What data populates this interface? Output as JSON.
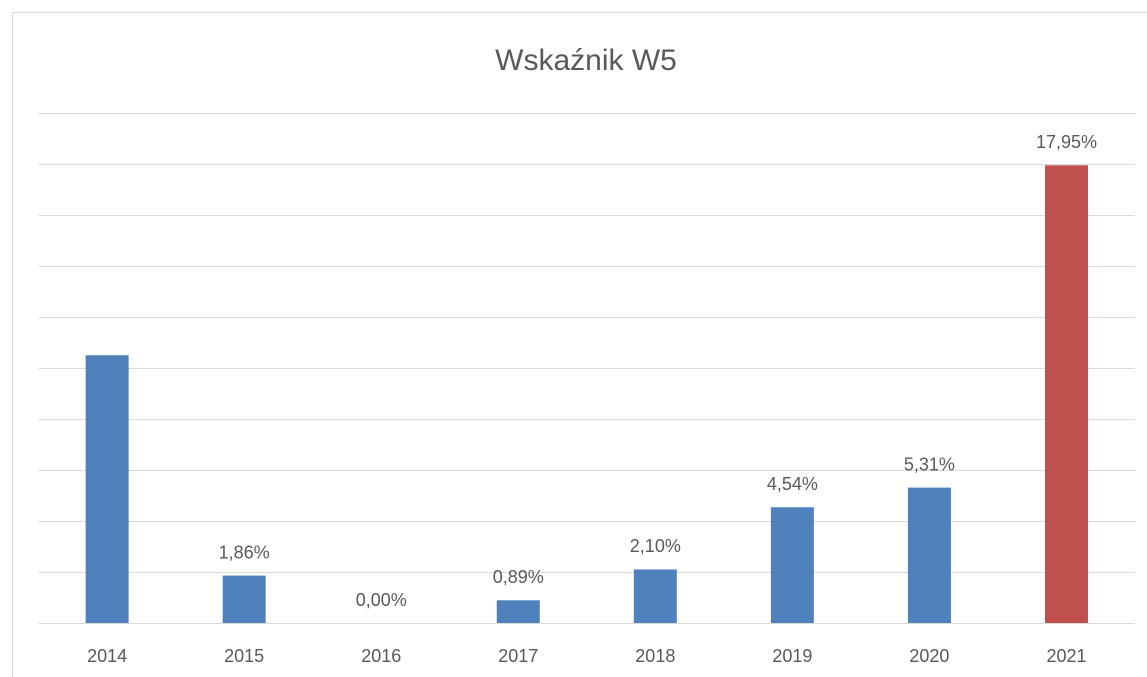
{
  "chart_data": {
    "type": "bar",
    "title": "Wskaźnik W5",
    "categories": [
      "2014",
      "2015",
      "2016",
      "2017",
      "2018",
      "2019",
      "2020",
      "2021"
    ],
    "values": [
      10.5,
      1.86,
      0.0,
      0.89,
      2.1,
      4.54,
      5.31,
      17.95
    ],
    "value_labels": [
      null,
      "1,86%",
      "0,00%",
      "0,89%",
      "2,10%",
      "4,54%",
      "5,31%",
      "17,95%"
    ],
    "colors": [
      "#4f81bd",
      "#4f81bd",
      "#4f81bd",
      "#4f81bd",
      "#4f81bd",
      "#4f81bd",
      "#4f81bd",
      "#c0504d"
    ],
    "ylim": [
      0,
      20
    ],
    "yticks": [
      0,
      2,
      4,
      6,
      8,
      10,
      12,
      14,
      16,
      18,
      20
    ],
    "grid": true
  }
}
